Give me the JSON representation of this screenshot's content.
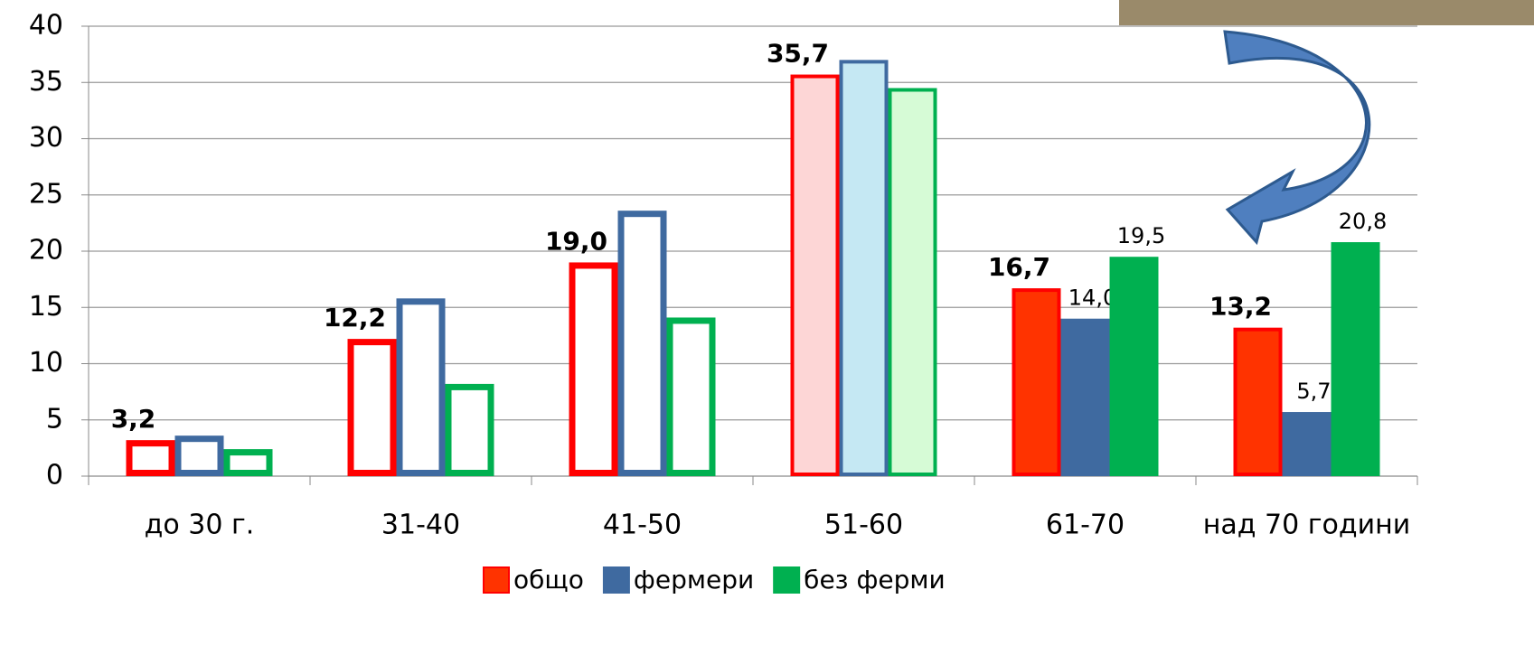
{
  "chart_data": {
    "type": "bar",
    "categories": [
      "до 30 г.",
      "31-40",
      "41-50",
      "51-60",
      "61-70",
      "над 70 години"
    ],
    "series": [
      {
        "name": "общо",
        "color": "#ff0000",
        "values": [
          3.2,
          12.2,
          19.0,
          35.7,
          16.7,
          13.2
        ],
        "value_labels": [
          "3,2",
          "12,2",
          "19,0",
          "35,7",
          "16,7",
          "13,2"
        ]
      },
      {
        "name": "фермери",
        "color": "#3f6aa0",
        "values": [
          3.6,
          15.8,
          23.6,
          37.0,
          14.0,
          5.7
        ],
        "value_labels": [
          null,
          null,
          null,
          null,
          "14,0",
          "5,7"
        ]
      },
      {
        "name": "без ферми",
        "color": "#00b050",
        "values": [
          2.4,
          8.2,
          14.1,
          34.5,
          19.5,
          20.8
        ],
        "value_labels": [
          null,
          null,
          null,
          null,
          "19,5",
          "20,8"
        ]
      }
    ],
    "ylim": [
      0,
      40
    ],
    "yticks": [
      0,
      5,
      10,
      15,
      20,
      25,
      30,
      35,
      40
    ],
    "grid": true,
    "legend": "bottom"
  }
}
